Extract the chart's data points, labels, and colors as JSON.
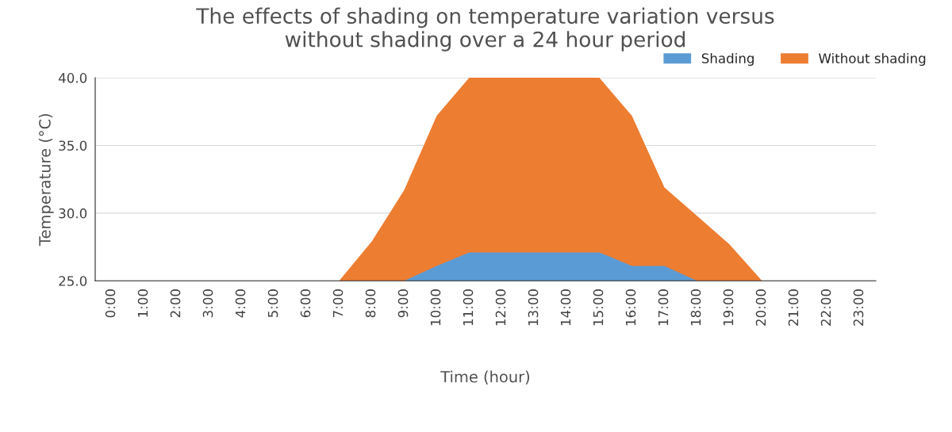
{
  "chart_data": {
    "type": "area",
    "title": "The effects of shading on temperature variation versus\nwithout shading over a 24 hour period",
    "xlabel": "Time (hour)",
    "ylabel": "Temperature (°C)",
    "categories": [
      "0:00",
      "1:00",
      "2:00",
      "3:00",
      "4:00",
      "5:00",
      "6:00",
      "7:00",
      "8:00",
      "9:00",
      "10:00",
      "11:00",
      "12:00",
      "13:00",
      "14:00",
      "15:00",
      "16:00",
      "17:00",
      "18:00",
      "19:00",
      "20:00",
      "21:00",
      "22:00",
      "23:00"
    ],
    "series": [
      {
        "name": "Without shading",
        "color": "#ed7d31",
        "values": [
          25,
          25,
          25,
          25,
          25,
          25,
          25,
          25,
          27.9,
          31.7,
          37.2,
          40,
          40,
          40,
          40,
          40,
          37.2,
          31.9,
          29.8,
          27.7,
          25,
          25,
          25,
          25
        ]
      },
      {
        "name": "Shading",
        "color": "#5b9bd5",
        "values": [
          25,
          25,
          25,
          25,
          25,
          25,
          25,
          25,
          25,
          25,
          26.1,
          27.1,
          27.1,
          27.1,
          27.1,
          27.1,
          26.1,
          26.1,
          25,
          25,
          25,
          25,
          25,
          25
        ]
      }
    ],
    "ylim": [
      25,
      40
    ],
    "yticks": [
      {
        "value": 25,
        "label": "25.0"
      },
      {
        "value": 30,
        "label": "30.0"
      },
      {
        "value": 35,
        "label": "35.0"
      },
      {
        "value": 40,
        "label": "40.0"
      }
    ],
    "grid": "y",
    "legend": "top right"
  }
}
